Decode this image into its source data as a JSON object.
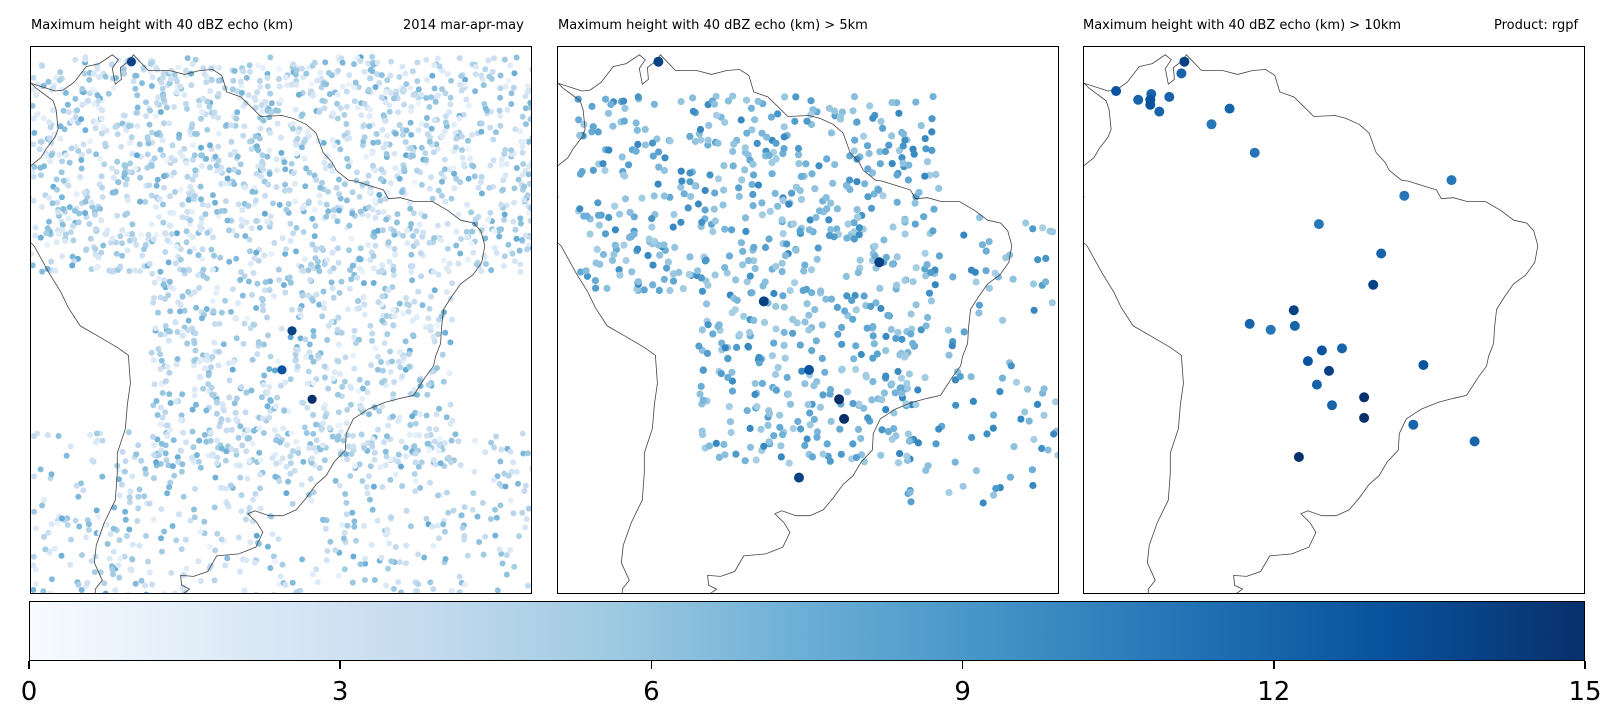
{
  "titles": {
    "panel1": "Maximum height with 40 dBZ echo (km)",
    "season": "2014 mar-apr-may",
    "panel2": "Maximum height with 40 dBZ echo (km) > 5km",
    "panel3": "Maximum height with 40 dBZ echo (km) > 10km",
    "product": "Product: rgpf"
  },
  "colorbar": {
    "cmap": "Blues",
    "vmin": 0,
    "vmax": 15,
    "ticks": [
      "0",
      "3",
      "6",
      "9",
      "12",
      "15"
    ],
    "stops": [
      "#f7fbff",
      "#deebf7",
      "#c6dbef",
      "#9ecae1",
      "#6baed6",
      "#4292c6",
      "#2171b5",
      "#08519c",
      "#08306b"
    ]
  },
  "chart_data": [
    {
      "type": "scatter",
      "title": "Maximum height with 40 dBZ echo (km)",
      "annotation": "2014 mar-apr-may",
      "region": "South America",
      "threshold_km": 0,
      "value_range": [
        0,
        15
      ],
      "note": "dense field of thousands of precipitation features; mostly 2-8 km",
      "notable_points": [
        {
          "lon": -70,
          "lat": 11.5,
          "value": 14
        },
        {
          "lon": -52,
          "lat": -23,
          "value": 15
        },
        {
          "lon": -54,
          "lat": -16,
          "value": 14
        },
        {
          "lon": -55,
          "lat": -20,
          "value": 13
        }
      ]
    },
    {
      "type": "scatter",
      "title": "Maximum height with 40 dBZ echo (km) > 5km",
      "region": "South America",
      "threshold_km": 5,
      "value_range": [
        5,
        15
      ],
      "notable_points": [
        {
          "lon": -70,
          "lat": 11.5,
          "value": 14
        },
        {
          "lon": -48,
          "lat": -9,
          "value": 14
        },
        {
          "lon": -59.5,
          "lat": -13,
          "value": 14
        },
        {
          "lon": -52,
          "lat": -23,
          "value": 15
        },
        {
          "lon": -51.5,
          "lat": -25,
          "value": 15
        },
        {
          "lon": -55,
          "lat": -20,
          "value": 13
        },
        {
          "lon": -56,
          "lat": -31,
          "value": 14
        }
      ]
    },
    {
      "type": "scatter",
      "title": "Maximum height with 40 dBZ echo (km) > 10km",
      "annotation": "Product: rgpf",
      "region": "South America",
      "threshold_km": 10,
      "points": [
        {
          "lon": -70,
          "lat": 11.5,
          "value": 14
        },
        {
          "lon": -70.3,
          "lat": 10.3,
          "value": 12
        },
        {
          "lon": -76.8,
          "lat": 8.5,
          "value": 13
        },
        {
          "lon": -74.6,
          "lat": 7.6,
          "value": 12
        },
        {
          "lon": -73.3,
          "lat": 8.2,
          "value": 12
        },
        {
          "lon": -73.4,
          "lat": 7.6,
          "value": 13
        },
        {
          "lon": -71.5,
          "lat": 7.9,
          "value": 12
        },
        {
          "lon": -73.4,
          "lat": 7.1,
          "value": 13
        },
        {
          "lon": -72.5,
          "lat": 6.4,
          "value": 12
        },
        {
          "lon": -65.5,
          "lat": 6.7,
          "value": 12
        },
        {
          "lon": -67.3,
          "lat": 5.1,
          "value": 11
        },
        {
          "lon": -63,
          "lat": 2.2,
          "value": 11
        },
        {
          "lon": -48.1,
          "lat": -2.2,
          "value": 11
        },
        {
          "lon": -43.4,
          "lat": -0.6,
          "value": 11
        },
        {
          "lon": -56.6,
          "lat": -5.1,
          "value": 11
        },
        {
          "lon": -50.4,
          "lat": -8.1,
          "value": 12
        },
        {
          "lon": -51.2,
          "lat": -11.3,
          "value": 14
        },
        {
          "lon": -59.1,
          "lat": -13.9,
          "value": 14
        },
        {
          "lon": -63.5,
          "lat": -15.3,
          "value": 12
        },
        {
          "lon": -61.4,
          "lat": -15.9,
          "value": 11
        },
        {
          "lon": -59,
          "lat": -15.5,
          "value": 12
        },
        {
          "lon": -56.3,
          "lat": -18,
          "value": 13
        },
        {
          "lon": -54.3,
          "lat": -17.8,
          "value": 12
        },
        {
          "lon": -57.7,
          "lat": -19.1,
          "value": 13
        },
        {
          "lon": -55.6,
          "lat": -20.1,
          "value": 14
        },
        {
          "lon": -46.2,
          "lat": -19.5,
          "value": 13
        },
        {
          "lon": -56.8,
          "lat": -21.5,
          "value": 12
        },
        {
          "lon": -52.1,
          "lat": -22.8,
          "value": 15
        },
        {
          "lon": -55.3,
          "lat": -23.6,
          "value": 12
        },
        {
          "lon": -52.1,
          "lat": -24.9,
          "value": 15
        },
        {
          "lon": -47.2,
          "lat": -25.6,
          "value": 12
        },
        {
          "lon": -41.1,
          "lat": -27.3,
          "value": 12
        },
        {
          "lon": -58.6,
          "lat": -28.9,
          "value": 15
        }
      ]
    }
  ]
}
